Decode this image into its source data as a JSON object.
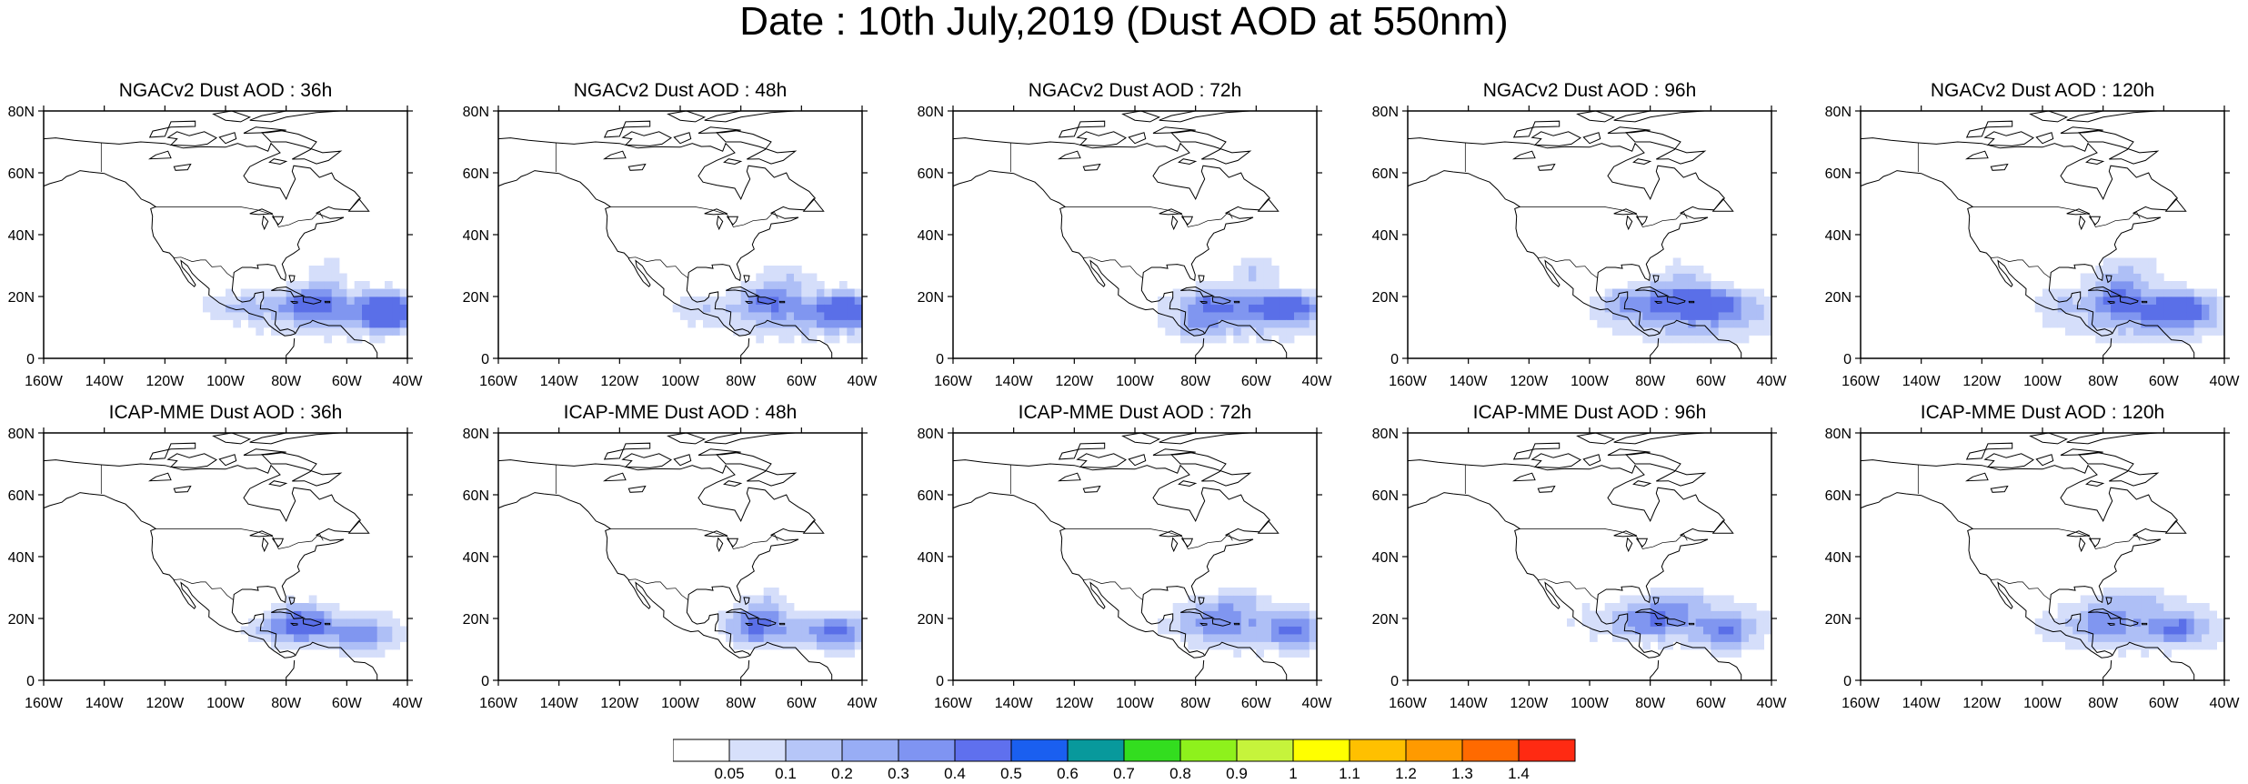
{
  "title": "Date : 10th July,2019 (Dust AOD at 550nm)",
  "lat_labels": [
    "0",
    "20N",
    "40N",
    "60N",
    "80N"
  ],
  "lon_labels": [
    "160W",
    "140W",
    "120W",
    "100W",
    "80W",
    "60W",
    "40W"
  ],
  "panel_rows": [
    {
      "row": "NGACv2",
      "panels": [
        {
          "title": "NGACv2 Dust AOD : 36h"
        },
        {
          "title": "NGACv2 Dust AOD : 48h"
        },
        {
          "title": "NGACv2 Dust AOD : 72h"
        },
        {
          "title": "NGACv2 Dust AOD : 96h"
        },
        {
          "title": "NGACv2 Dust AOD : 120h"
        }
      ]
    },
    {
      "row": "ICAP-MME",
      "panels": [
        {
          "title": "ICAP-MME Dust AOD : 36h"
        },
        {
          "title": "ICAP-MME Dust AOD : 48h"
        },
        {
          "title": "ICAP-MME Dust AOD : 72h"
        },
        {
          "title": "ICAP-MME Dust AOD : 96h"
        },
        {
          "title": "ICAP-MME Dust AOD : 120h"
        }
      ]
    }
  ],
  "colorbar": {
    "labels": [
      "0.05",
      "0.1",
      "0.2",
      "0.3",
      "0.4",
      "0.5",
      "0.6",
      "0.7",
      "0.8",
      "0.9",
      "1",
      "1.1",
      "1.2",
      "1.3",
      "1.4"
    ],
    "colors": [
      "#ffffff",
      "#d7e0fb",
      "#b6c6f8",
      "#98adf5",
      "#7f94f2",
      "#5f70ee",
      "#1a5ff0",
      "#08999c",
      "#33dd1f",
      "#8ef11c",
      "#c6f43b",
      "#ffff00",
      "#ffc000",
      "#ff9a00",
      "#ff6a00",
      "#ff2a12"
    ]
  },
  "dust_palette": {
    "light": "#d5defa",
    "medium": "#aebff6",
    "strong": "#8096f0",
    "core": "#5a6fe8"
  }
}
